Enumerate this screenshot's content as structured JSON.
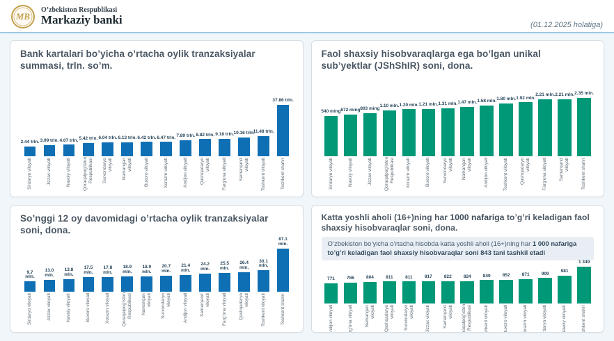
{
  "header": {
    "org_line1": "O’zbekiston Respublikasi",
    "org_line2": "Markaziy banki",
    "logo_monogram": "MB",
    "date_note": "(01.12.2025 holatiga)"
  },
  "colors": {
    "bar_blue": "#0e6fb4",
    "bar_green": "#009877",
    "header_rule": "#9cc8e4",
    "note_bg": "#e8eef4",
    "logo_gold": "#c49f4b"
  },
  "summary_note": {
    "part_regular": "O’zbekiston bo’yicha o’rtacha hisobda katta yoshli aholi (16+)ning har ",
    "part_bold": "1 000 nafariga to’g’ri keladigan faol shaxsiy hisobvaraqlar soni 843 tani tashkil etadi"
  },
  "chart_data": [
    {
      "type": "bar",
      "title": "Bank kartalari bo’yicha o’rtacha oylik tranzaksiyalar summasi, trln. so’m.",
      "unit": "trln. so'm",
      "color": "#0e6fb4",
      "bar_width": "60%",
      "categories": [
        "Sirdaryo viloyati",
        "Jizzax viloyati",
        "Navoiy viloyati",
        "Qoraqalpog’iston Respublikasi",
        "Surxondaryo viloyati",
        "Namangan viloyati",
        "Buxoro viloyati",
        "Xorazm viloyati",
        "Andijon viloyati",
        "Qashqadaryo viloyati",
        "Farg’ona viloyati",
        "Samarqand viloyati",
        "Toshkent viloyati",
        "Toshkent shahri"
      ],
      "values": [
        2.44,
        3.99,
        4.07,
        5.42,
        6.04,
        6.13,
        6.42,
        6.47,
        7.89,
        8.82,
        9.18,
        10.16,
        11.48,
        37.86
      ],
      "labels": [
        "2.44 trln.",
        "3.99 trln.",
        "4.07 trln.",
        "5.42 trln.",
        "6.04 trln.",
        "6.13 trln.",
        "6.42 trln.",
        "6.47 trln.",
        "7.89 trln.",
        "8.82 trln.",
        "9.18 trln.",
        "10.16 trln.",
        "11.48 trln.",
        "37.86 trln."
      ],
      "ylim": [
        0,
        40
      ],
      "scale": {
        "vmin": 2.44,
        "vmax": 37.86,
        "fmin": 0.13,
        "fmax": 0.7
      }
    },
    {
      "type": "bar",
      "title": "Faol shaxsiy hisobvaraqlarga ega bo’lgan unikal sub’yektlar (JShShIR) soni, dona.",
      "unit": "dona",
      "color": "#009877",
      "bar_width": "70%",
      "categories": [
        "Sirdaryo viloyati",
        "Navoiy viloyati",
        "Jizzax viloyati",
        "Qoraqalpog’iston Respublikasi",
        "Xorazm viloyati",
        "Buxoro viloyati",
        "Surxondaryo viloyati",
        "Namangan viloyati",
        "Andijon viloyati",
        "Toshkent viloyati",
        "Qashqadaryo viloyati",
        "Farg’ona viloyati",
        "Samarqand viloyati",
        "Toshkent shahri"
      ],
      "values": [
        0.54,
        0.672,
        0.803,
        1.1,
        1.2,
        1.21,
        1.31,
        1.47,
        1.58,
        1.8,
        1.92,
        2.21,
        2.21,
        2.35
      ],
      "labels": [
        "540 ming",
        "672 ming",
        "803 ming",
        "1.10 mln.",
        "1.20 mln.",
        "1.21 mln.",
        "1.31 mln.",
        "1.47 mln.",
        "1.58 mln.",
        "1.80 mln.",
        "1.92 mln.",
        "2.21 mln.",
        "2.21 mln.",
        "2.35 mln."
      ],
      "ylim": [
        0,
        2.5
      ],
      "scale": {
        "vmin": 0.54,
        "vmax": 2.35,
        "fmin": 0.55,
        "fmax": 0.79
      }
    },
    {
      "type": "bar",
      "title": "So’nggi 12 oy davomidagi o’rtacha oylik tranzaksiyalar soni, dona.",
      "unit": "mln. dona",
      "color": "#0e6fb4",
      "bar_width": "60%",
      "categories": [
        "Sirdaryo viloyati",
        "Jizzax viloyati",
        "Navoiy viloyati",
        "Buxoro viloyati",
        "Xorazm viloyati",
        "Qoraqalpog’iston Respublikasi",
        "Namangan viloyati",
        "Surxondaryo viloyati",
        "Andijon viloyati",
        "Samarqand viloyati",
        "Farg’ona viloyati",
        "Qashqadaryo viloyati",
        "Toshkent viloyati",
        "Toshkent shahri"
      ],
      "values": [
        9.7,
        13.0,
        13.8,
        17.5,
        17.8,
        18.9,
        18.9,
        20.7,
        21.4,
        24.2,
        25.5,
        26.4,
        30.1,
        87.1
      ],
      "labels": [
        "9.7\nmln.",
        "13.0\nmln.",
        "13.8\nmln.",
        "17.5\nmln.",
        "17.8\nmln.",
        "18.9\nmln.",
        "18.9\nmln.",
        "20.7\nmln.",
        "21.4\nmln.",
        "24.2\nmln.",
        "25.5\nmln.",
        "26.4\nmln.",
        "30.1\nmln.",
        "87.1\nmln."
      ],
      "ylim": [
        0,
        90
      ],
      "scale": {
        "vmin": 9.7,
        "vmax": 87.1,
        "fmin": 0.19,
        "fmax": 0.97
      }
    },
    {
      "type": "bar",
      "title": "Katta yoshli aholi (16+)ning har 1000 nafariga to’g’ri keladigan faol shaxsiy hisobvaraqlar soni, dona.",
      "title_parts": [
        "Katta yoshli aholi (16+)ning har ",
        "1000 nafariga",
        " to’g’ri keladigan faol shaxsiy hisobvaraqlar soni, dona."
      ],
      "unit": "dona",
      "color": "#009877",
      "bar_width": "70%",
      "categories": [
        "Andijon viloyati",
        "Farg’ona viloyati",
        "Namangan viloyati",
        "Qashqadaryo viloyati",
        "Surxondaryo viloyati",
        "Jizzax viloyati",
        "Samarqand viloyati",
        "Qoraqalpog’iston Respublikasi",
        "Toshkent viloyati",
        "Buxoro viloyati",
        "Xorazm viloyati",
        "Sirdaryo viloyati",
        "Navoiy viloyati",
        "Toshkent shahri"
      ],
      "values": [
        771,
        786,
        804,
        811,
        811,
        817,
        822,
        824,
        849,
        852,
        871,
        909,
        981,
        1349
      ],
      "labels": [
        "771",
        "786",
        "804",
        "811",
        "811",
        "817",
        "822",
        "824",
        "849",
        "852",
        "871",
        "909",
        "981",
        "1 349"
      ],
      "ylim": [
        0,
        1400
      ],
      "scale": {
        "vmin": 771,
        "vmax": 1349,
        "fmin": 0.48,
        "fmax": 0.97
      }
    }
  ]
}
